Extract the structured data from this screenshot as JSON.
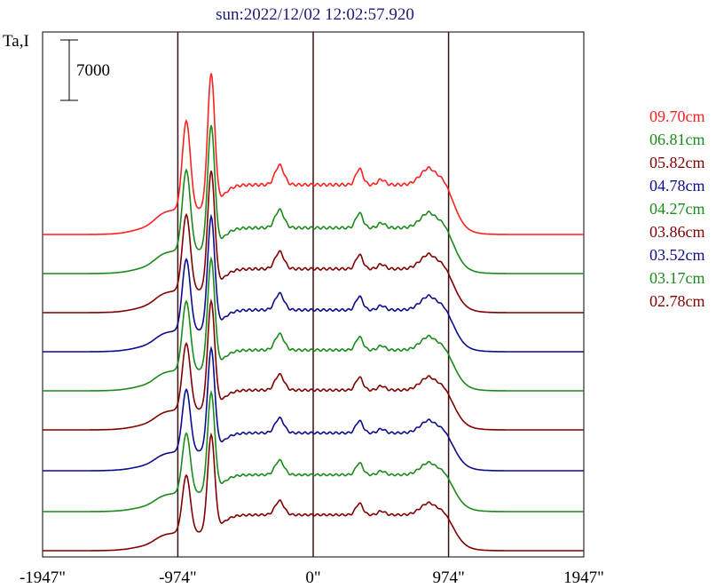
{
  "chart_data": {
    "type": "line",
    "title": "sun:2022/12/02 12:02:57.920",
    "ylabel": "Ta,I",
    "scale_bar_label": "7000",
    "x_tick_labels": [
      "-1947\"",
      "-974\"",
      "0\"",
      "974\"",
      "1947\""
    ],
    "x_ticks": [
      -1947,
      -974,
      0,
      974,
      1947
    ],
    "xlim": [
      -1947,
      1947
    ],
    "vertical_lines_at": [
      -974,
      0,
      974
    ],
    "legend_placement": "right",
    "series": [
      {
        "name": "09.70cm",
        "color": "#ff2020",
        "baseline": 264,
        "amp": 1.0
      },
      {
        "name": "06.81cm",
        "color": "#1a8a1a",
        "baseline": 308,
        "amp": 0.92
      },
      {
        "name": "05.82cm",
        "color": "#800000",
        "baseline": 352,
        "amp": 0.88
      },
      {
        "name": "04.78cm",
        "color": "#0c0c8c",
        "baseline": 396,
        "amp": 0.84
      },
      {
        "name": "04.27cm",
        "color": "#1a8a1a",
        "baseline": 440,
        "amp": 0.82
      },
      {
        "name": "03.86cm",
        "color": "#800000",
        "baseline": 484,
        "amp": 0.8
      },
      {
        "name": "03.52cm",
        "color": "#0c0c8c",
        "baseline": 530,
        "amp": 0.76
      },
      {
        "name": "03.17cm",
        "color": "#1a8a1a",
        "baseline": 576,
        "amp": 0.74
      },
      {
        "name": "02.78cm",
        "color": "#800000",
        "baseline": 620,
        "amp": 0.72
      }
    ]
  }
}
